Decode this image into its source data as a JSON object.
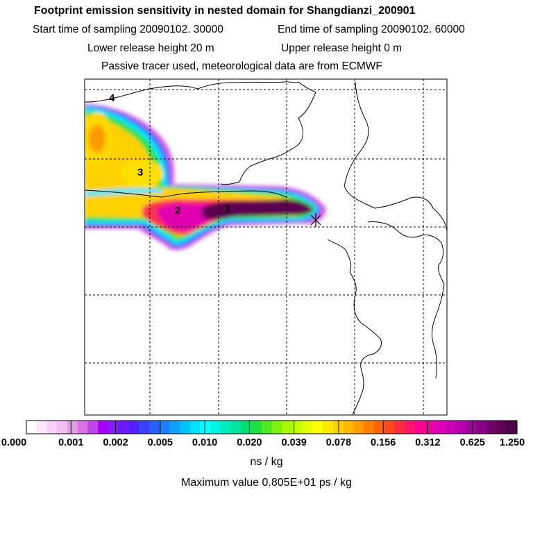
{
  "header": {
    "title": "Footprint emission sensitivity in nested domain for Shangdianzi_200901",
    "start_time": "Start time of sampling 20090102. 30000",
    "end_time": "End time of sampling 20090102. 60000",
    "lower_height": "Lower release height   20 m",
    "upper_height": "Upper release height    0 m",
    "subtitle": "Passive tracer used, meteorological data are from ECMWF"
  },
  "map": {
    "labels": [
      "1",
      "2",
      "3",
      "4"
    ]
  },
  "legend": {
    "ticks": [
      "0.000",
      "0.001",
      "0.002",
      "0.005",
      "0.010",
      "0.020",
      "0.039",
      "0.078",
      "0.156",
      "0.312",
      "0.625",
      "1.250"
    ],
    "colors": [
      "#ffffff",
      "#fbe8fb",
      "#f7d1f7",
      "#f2bff2",
      "#e79be7",
      "#d672e6",
      "#c045f0",
      "#a800ff",
      "#8a1aff",
      "#6a1aff",
      "#5020ff",
      "#3a40ff",
      "#2a60ff",
      "#1a80ff",
      "#10a0ff",
      "#00c0ff",
      "#00e0ff",
      "#00ffff",
      "#00f5e0",
      "#00ecc0",
      "#00e39a",
      "#00e070",
      "#20e040",
      "#50e820",
      "#80f010",
      "#a8f800",
      "#c8ff00",
      "#e8ff00",
      "#ffff00",
      "#ffe800",
      "#ffd000",
      "#ffb800",
      "#ff9c00",
      "#ff8000",
      "#ff6400",
      "#ff4820",
      "#ff2c40",
      "#ff1470",
      "#ff0090",
      "#f000a4",
      "#e000b4",
      "#cc00b8",
      "#b800b0",
      "#a0009c",
      "#880084",
      "#70006c",
      "#600058",
      "#500048"
    ],
    "units": "ns / kg",
    "max_value": "Maximum value  0.805E+01 ps / kg"
  }
}
